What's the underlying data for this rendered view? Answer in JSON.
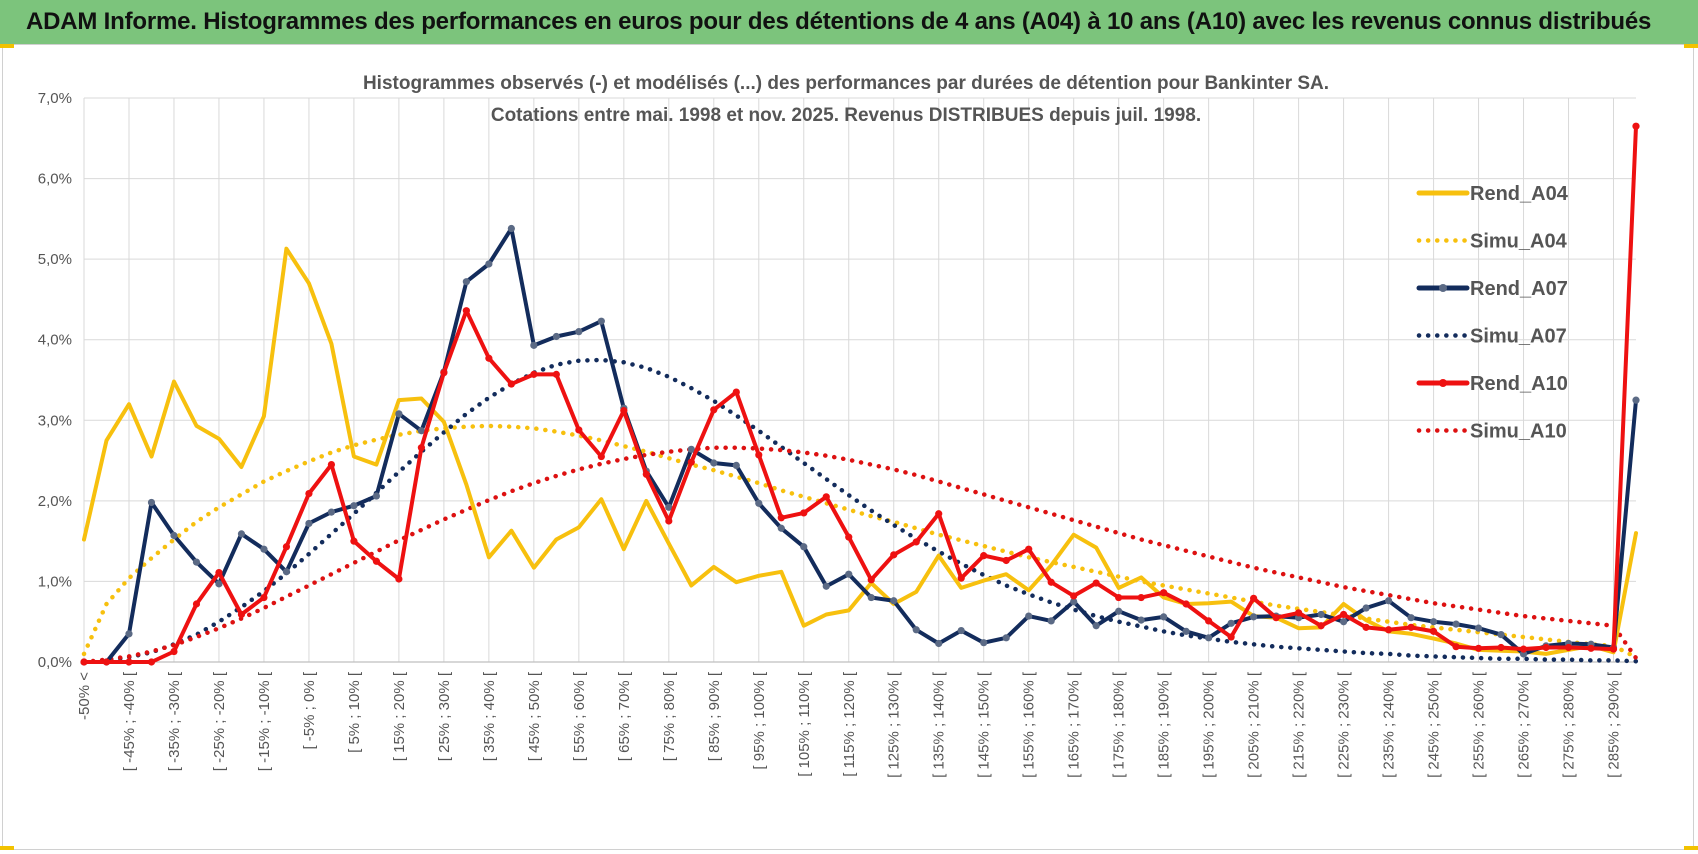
{
  "header": {
    "title": "ADAM Informe. Histogrammes des performances en euros pour des détentions de 4 ans (A04) à 10 ans (A10) avec les revenus connus distribués"
  },
  "colors": {
    "banner": "#7cc47c",
    "Rend_A04": "#f7c00e",
    "Simu_A04": "#f7c00e",
    "Rend_A07": "#132c5c",
    "Simu_A07": "#132c5c",
    "Rend_A10": "#ee1111",
    "Simu_A10": "#dd1111",
    "grid": "#d9d9d9",
    "marker_A07": "#5b6a85",
    "marker_A10": "#ee1111"
  },
  "chart_data": {
    "type": "line",
    "title_line1": "Histogrammes observés (-) et modélisés (...) des performances par durées de détention pour Bankinter SA.",
    "title_line2": "Cotations entre mai. 1998 et nov. 2025. Revenus DISTRIBUES depuis juil. 1998.",
    "xlabel": "",
    "ylabel": "",
    "ylim": [
      0,
      7.0
    ],
    "yticks": [
      "0,0%",
      "1,0%",
      "2,0%",
      "3,0%",
      "4,0%",
      "5,0%",
      "6,0%",
      "7,0%"
    ],
    "grid": true,
    "legend_position": "right",
    "x_labels": [
      "-50% <",
      "[ -45% ; -40% [",
      "[ -35% ; -30% [",
      "[ -25% ; -20% [",
      "[ -15% ; -10% [",
      "[ -5% ; 0% [",
      "[ 5% ; 10% [",
      "[ 15% ; 20% [",
      "[ 25% ; 30% [",
      "[ 35% ; 40% [",
      "[ 45% ; 50% [",
      "[ 55% ; 60% [",
      "[ 65% ; 70% [",
      "[ 75% ; 80% [",
      "[ 85% ; 90% [",
      "[ 95% ; 100% [",
      "[ 105% ; 110% [",
      "[ 115% ; 120% [",
      "[ 125% ; 130% [",
      "[ 135% ; 140% [",
      "[ 145% ; 150% [",
      "[ 155% ; 160% [",
      "[ 165% ; 170% [",
      "[ 175% ; 180% [",
      "[ 185% ; 190% [",
      "[ 195% ; 200% [",
      "[ 205% ; 210% [",
      "[ 215% ; 220% [",
      "[ 225% ; 230% [",
      "[ 235% ; 240% [",
      "[ 245% ; 250% [",
      "[ 255% ; 260% [",
      "[ 265% ; 270% [",
      "[ 275% ; 280% [",
      "[ 285% ; 290% ["
    ],
    "series": [
      {
        "name": "Rend_A04",
        "style": "solid",
        "markers": false,
        "values": [
          1.52,
          2.75,
          3.2,
          2.55,
          3.48,
          2.93,
          2.77,
          2.42,
          3.05,
          5.13,
          4.7,
          3.95,
          2.55,
          2.45,
          3.25,
          3.27,
          2.98,
          2.2,
          1.3,
          1.63,
          1.17,
          1.52,
          1.67,
          2.02,
          1.4,
          2.0,
          1.47,
          0.95,
          1.18,
          0.99,
          1.07,
          1.12,
          0.45,
          0.59,
          0.64,
          0.98,
          0.72,
          0.87,
          1.32,
          0.92,
          1.01,
          1.09,
          0.89,
          1.2,
          1.58,
          1.42,
          0.92,
          1.05,
          0.8,
          0.72,
          0.73,
          0.75,
          0.57,
          0.55,
          0.42,
          0.43,
          0.72,
          0.52,
          0.38,
          0.35,
          0.29,
          0.23,
          0.15,
          0.14,
          0.13,
          0.1,
          0.15,
          0.2,
          0.12,
          1.6
        ]
      },
      {
        "name": "Simu_A04",
        "style": "dotted",
        "values": [
          0.1,
          0.72,
          1.04,
          1.29,
          1.52,
          1.74,
          1.92,
          2.08,
          2.24,
          2.37,
          2.49,
          2.6,
          2.69,
          2.76,
          2.82,
          2.87,
          2.9,
          2.92,
          2.93,
          2.92,
          2.9,
          2.86,
          2.81,
          2.75,
          2.68,
          2.61,
          2.53,
          2.45,
          2.38,
          2.3,
          2.22,
          2.13,
          2.05,
          1.97,
          1.89,
          1.81,
          1.74,
          1.66,
          1.58,
          1.51,
          1.44,
          1.37,
          1.3,
          1.24,
          1.18,
          1.12,
          1.06,
          1.0,
          0.95,
          0.9,
          0.85,
          0.8,
          0.75,
          0.7,
          0.66,
          0.62,
          0.58,
          0.54,
          0.5,
          0.46,
          0.43,
          0.4,
          0.37,
          0.34,
          0.31,
          0.28,
          0.25,
          0.22,
          0.2,
          0.06
        ]
      },
      {
        "name": "Rend_A07",
        "style": "solid",
        "markers": true,
        "values": [
          0.0,
          0.0,
          0.35,
          1.98,
          1.57,
          1.24,
          0.97,
          1.59,
          1.4,
          1.12,
          1.72,
          1.86,
          1.94,
          2.06,
          3.08,
          2.87,
          3.6,
          4.72,
          4.94,
          5.38,
          3.93,
          4.04,
          4.1,
          4.23,
          3.15,
          2.37,
          1.92,
          2.64,
          2.47,
          2.44,
          1.97,
          1.66,
          1.43,
          0.94,
          1.09,
          0.8,
          0.76,
          0.4,
          0.23,
          0.39,
          0.24,
          0.3,
          0.57,
          0.51,
          0.75,
          0.45,
          0.63,
          0.52,
          0.56,
          0.38,
          0.3,
          0.48,
          0.56,
          0.57,
          0.55,
          0.59,
          0.5,
          0.67,
          0.76,
          0.55,
          0.5,
          0.47,
          0.42,
          0.34,
          0.1,
          0.2,
          0.23,
          0.22,
          0.18,
          3.25
        ]
      },
      {
        "name": "Simu_A07",
        "style": "dotted",
        "values": [
          0.0,
          0.02,
          0.06,
          0.12,
          0.22,
          0.34,
          0.5,
          0.68,
          0.88,
          1.1,
          1.34,
          1.59,
          1.84,
          2.1,
          2.36,
          2.61,
          2.85,
          3.08,
          3.28,
          3.45,
          3.59,
          3.69,
          3.74,
          3.75,
          3.72,
          3.65,
          3.54,
          3.4,
          3.24,
          3.06,
          2.87,
          2.67,
          2.47,
          2.27,
          2.07,
          1.88,
          1.7,
          1.53,
          1.37,
          1.22,
          1.08,
          0.95,
          0.84,
          0.74,
          0.65,
          0.57,
          0.5,
          0.44,
          0.38,
          0.33,
          0.29,
          0.25,
          0.22,
          0.19,
          0.17,
          0.15,
          0.13,
          0.11,
          0.1,
          0.08,
          0.07,
          0.06,
          0.05,
          0.04,
          0.04,
          0.03,
          0.03,
          0.02,
          0.02,
          0.01
        ]
      },
      {
        "name": "Rend_A10",
        "style": "solid",
        "markers": true,
        "values": [
          0.0,
          0.0,
          0.0,
          0.0,
          0.13,
          0.72,
          1.11,
          0.59,
          0.8,
          1.43,
          2.09,
          2.45,
          1.5,
          1.25,
          1.03,
          2.66,
          3.59,
          4.36,
          3.77,
          3.45,
          3.57,
          3.57,
          2.88,
          2.55,
          3.12,
          2.33,
          1.75,
          2.48,
          3.13,
          3.35,
          2.57,
          1.79,
          1.85,
          2.05,
          1.55,
          1.02,
          1.33,
          1.49,
          1.84,
          1.04,
          1.32,
          1.26,
          1.4,
          0.99,
          0.82,
          0.98,
          0.8,
          0.8,
          0.86,
          0.72,
          0.51,
          0.31,
          0.79,
          0.55,
          0.61,
          0.45,
          0.59,
          0.43,
          0.4,
          0.43,
          0.38,
          0.19,
          0.17,
          0.18,
          0.16,
          0.18,
          0.18,
          0.17,
          0.16,
          6.65
        ]
      },
      {
        "name": "Simu_A10",
        "style": "dotted",
        "values": [
          0.0,
          0.03,
          0.07,
          0.13,
          0.21,
          0.31,
          0.42,
          0.54,
          0.67,
          0.81,
          0.95,
          1.09,
          1.23,
          1.37,
          1.51,
          1.64,
          1.77,
          1.89,
          2.01,
          2.12,
          2.22,
          2.31,
          2.39,
          2.46,
          2.52,
          2.57,
          2.61,
          2.64,
          2.66,
          2.66,
          2.65,
          2.63,
          2.6,
          2.56,
          2.51,
          2.45,
          2.39,
          2.32,
          2.24,
          2.16,
          2.08,
          2.0,
          1.92,
          1.84,
          1.76,
          1.68,
          1.6,
          1.52,
          1.45,
          1.38,
          1.31,
          1.24,
          1.17,
          1.11,
          1.05,
          0.99,
          0.93,
          0.88,
          0.83,
          0.78,
          0.73,
          0.69,
          0.65,
          0.61,
          0.57,
          0.54,
          0.51,
          0.48,
          0.45,
          0.05
        ]
      }
    ]
  }
}
